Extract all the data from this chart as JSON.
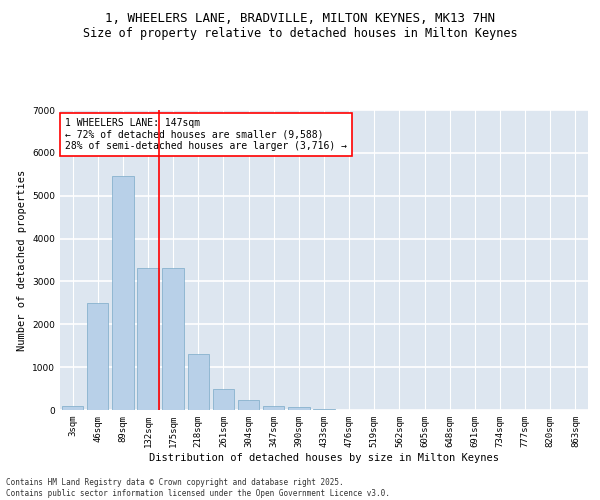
{
  "title_line1": "1, WHEELERS LANE, BRADVILLE, MILTON KEYNES, MK13 7HN",
  "title_line2": "Size of property relative to detached houses in Milton Keynes",
  "xlabel": "Distribution of detached houses by size in Milton Keynes",
  "ylabel": "Number of detached properties",
  "categories": [
    "3sqm",
    "46sqm",
    "89sqm",
    "132sqm",
    "175sqm",
    "218sqm",
    "261sqm",
    "304sqm",
    "347sqm",
    "390sqm",
    "433sqm",
    "476sqm",
    "519sqm",
    "562sqm",
    "605sqm",
    "648sqm",
    "691sqm",
    "734sqm",
    "777sqm",
    "820sqm",
    "863sqm"
  ],
  "values": [
    90,
    2500,
    5450,
    3320,
    3320,
    1300,
    500,
    230,
    100,
    60,
    20,
    5,
    0,
    0,
    0,
    0,
    0,
    0,
    0,
    0,
    0
  ],
  "bar_color": "#b8d0e8",
  "bar_edge_color": "#7aaac8",
  "vline_color": "red",
  "annotation_text": "1 WHEELERS LANE: 147sqm\n← 72% of detached houses are smaller (9,588)\n28% of semi-detached houses are larger (3,716) →",
  "annotation_box_facecolor": "white",
  "annotation_box_edgecolor": "red",
  "ylim": [
    0,
    7000
  ],
  "yticks": [
    0,
    1000,
    2000,
    3000,
    4000,
    5000,
    6000,
    7000
  ],
  "background_color": "#dde6f0",
  "grid_color": "white",
  "footer_line1": "Contains HM Land Registry data © Crown copyright and database right 2025.",
  "footer_line2": "Contains public sector information licensed under the Open Government Licence v3.0.",
  "title1_fontsize": 9,
  "title2_fontsize": 8.5,
  "axis_label_fontsize": 7.5,
  "tick_fontsize": 6.5,
  "annotation_fontsize": 7,
  "footer_fontsize": 5.5
}
